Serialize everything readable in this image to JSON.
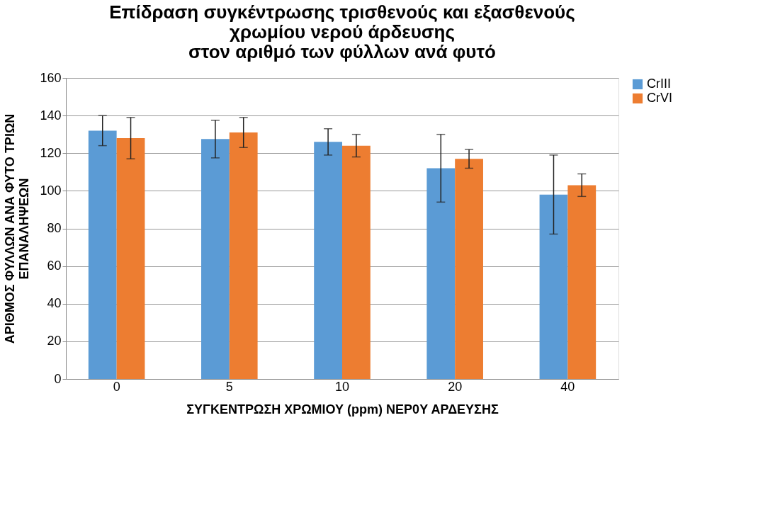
{
  "chart_data": {
    "type": "bar",
    "title": [
      "Επίδραση συγκέντρωσης τρισθενούς και εξασθενούς",
      "χρωμίου νερού άρδευσης",
      "στον αριθμό των φύλλων ανά φυτό"
    ],
    "xlabel": "ΣΥΓΚΕΝΤΡΩΣΗ ΧΡΩΜΙΟΥ (ppm) ΝΕΡ0Υ ΑΡΔΕΥΣΗΣ",
    "ylabel": [
      "ΑΡΙΘΜΟΣ ΦΥΛΛΩΝ ΑΝΑ ΦΥΤΟ ΤΡΙΩΝ",
      "ΕΠΑΝΑΛΗΨΕΩΝ"
    ],
    "categories": [
      "0",
      "5",
      "10",
      "20",
      "40"
    ],
    "series": [
      {
        "name": "CrIII",
        "color": "#5b9bd5",
        "values": [
          132,
          127.5,
          126,
          112,
          98
        ],
        "errors": [
          8,
          10,
          7,
          18,
          21
        ]
      },
      {
        "name": "CrVI",
        "color": "#ed7d31",
        "values": [
          128,
          131,
          124,
          117,
          103
        ],
        "errors": [
          11,
          8,
          6,
          5,
          6
        ]
      }
    ],
    "ylim": [
      0,
      160
    ],
    "yticks": [
      0,
      20,
      40,
      60,
      80,
      100,
      120,
      140,
      160
    ],
    "grid": "y",
    "legend": "right"
  }
}
